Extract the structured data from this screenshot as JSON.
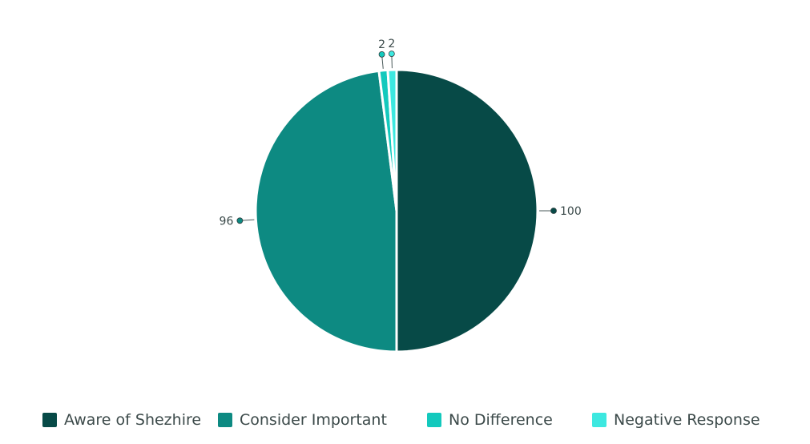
{
  "chart_data": {
    "type": "pie",
    "categories": [
      "Aware of Shezhire",
      "Consider Important",
      "No Difference",
      "Negative Response"
    ],
    "values": [
      100,
      96,
      2,
      2
    ],
    "colors": [
      "#074a47",
      "#0d8a82",
      "#13c9bd",
      "#3de8e0"
    ],
    "data_labels": [
      "100",
      "96",
      "2",
      "2"
    ],
    "legend_position": "bottom",
    "start_angle_deg": 0,
    "direction": "clockwise"
  },
  "legend": {
    "items": [
      {
        "label": "Aware of Shezhire",
        "color": "#074a47"
      },
      {
        "label": "Consider Important",
        "color": "#0d8a82"
      },
      {
        "label": "No Difference",
        "color": "#13c9bd"
      },
      {
        "label": "Negative Response",
        "color": "#3de8e0"
      }
    ]
  }
}
